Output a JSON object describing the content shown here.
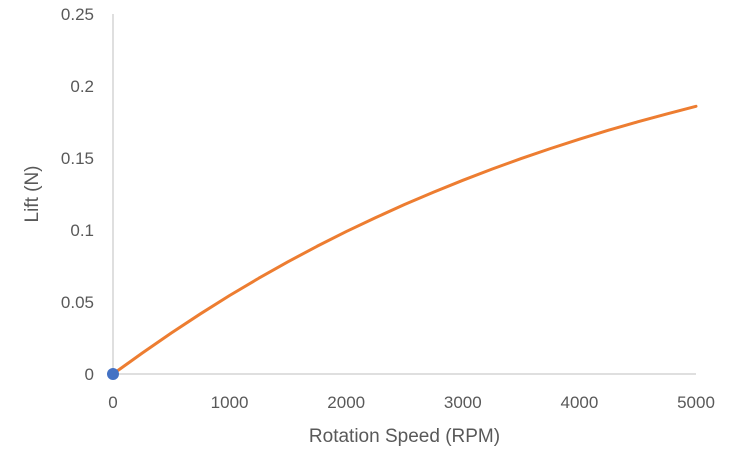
{
  "chart_data": {
    "type": "line",
    "title": "",
    "xlabel": "Rotation Speed (RPM)",
    "ylabel": "Lift (N)",
    "xlim": [
      0,
      5000
    ],
    "ylim": [
      0,
      0.25
    ],
    "x_ticks": [
      0,
      1000,
      2000,
      3000,
      4000,
      5000
    ],
    "x_tick_labels": [
      "0",
      "1000",
      "2000",
      "3000",
      "4000",
      "5000"
    ],
    "y_ticks": [
      0,
      0.05,
      0.1,
      0.15,
      0.2,
      0.25
    ],
    "y_tick_labels": [
      "0",
      "0.05",
      "0.1",
      "0.15",
      "0.2",
      "0.25"
    ],
    "grid": false,
    "legend": "none",
    "series": [
      {
        "type": "line",
        "color": "#ED7D31",
        "x": [
          0,
          250,
          500,
          750,
          1000,
          1250,
          1500,
          1750,
          2000,
          2250,
          2500,
          2750,
          3000,
          3250,
          3500,
          3750,
          4000,
          4250,
          4500,
          4750,
          5000
        ],
        "y": [
          0,
          0.0145,
          0.0285,
          0.0418,
          0.0545,
          0.0665,
          0.0779,
          0.0887,
          0.0989,
          0.1085,
          0.1177,
          0.1263,
          0.1345,
          0.1423,
          0.1496,
          0.1565,
          0.1631,
          0.1693,
          0.1751,
          0.1806,
          0.1859
        ]
      },
      {
        "type": "scatter",
        "color": "#4472C4",
        "x": [
          0
        ],
        "y": [
          0
        ]
      }
    ]
  }
}
